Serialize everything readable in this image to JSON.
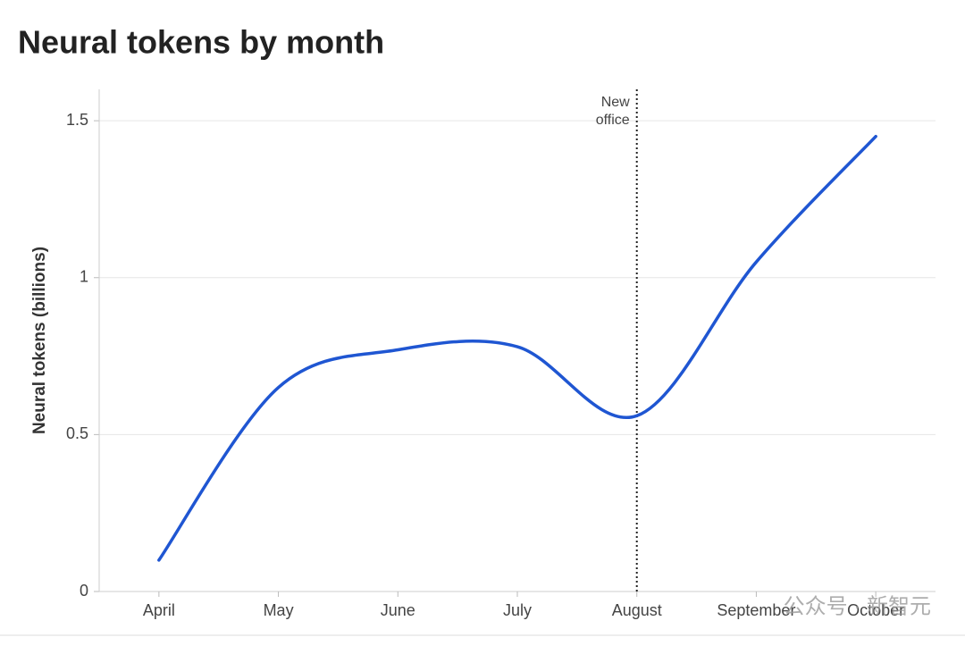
{
  "chart_data": {
    "type": "line",
    "title": "Neural tokens by month",
    "y_label": "Neural tokens (billions)",
    "categories": [
      "April",
      "May",
      "June",
      "July",
      "August",
      "September",
      "October"
    ],
    "series": [
      {
        "name": "Neural tokens",
        "color": "#1f56d2",
        "values": [
          0.1,
          0.65,
          0.77,
          0.78,
          0.56,
          1.05,
          1.45
        ]
      }
    ],
    "ylim": [
      0,
      1.6
    ],
    "yticks": [
      0,
      0.5,
      1,
      1.5
    ],
    "grid": true,
    "annotation": {
      "at": "August",
      "lines": [
        "New",
        "office"
      ]
    },
    "watermark": "公众号 · 新智元"
  }
}
